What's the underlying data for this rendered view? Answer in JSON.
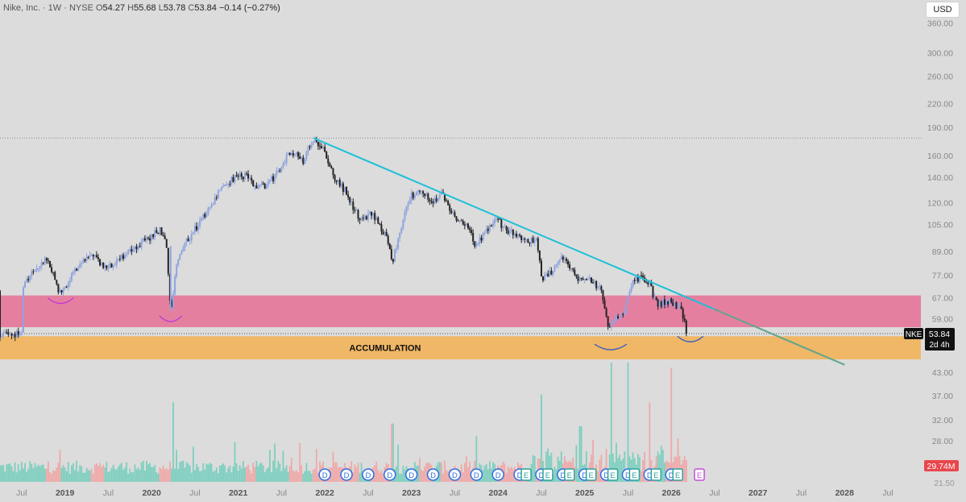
{
  "header": {
    "symbol_name": "Nike, Inc.",
    "interval": "1W",
    "exchange": "NYSE",
    "open_label": "O",
    "open": "54.27",
    "high_label": "H",
    "high": "55.68",
    "low_label": "L",
    "low": "53.78",
    "close_label": "C",
    "close": "53.84",
    "change": "−0.14 (−0.27%)"
  },
  "currency_button": "USD",
  "price_tag": {
    "ticker": "NKE",
    "price": "53.84",
    "countdown": "2d 4h"
  },
  "volume_tag": "29.74M",
  "zone_label": "ACCUMULATION",
  "colors": {
    "background": "#dcdcdc",
    "up_candle": "#8fa4de",
    "down_candle": "#222222",
    "trendline": "#1ec0d8",
    "resistance_zone": "#e57fa0",
    "accumulation_zone": "#efb766",
    "volume_up": "#7ccfbf",
    "volume_down": "#f0a8a8",
    "volume_tag": "#e8474d",
    "earnings_marker": "#2aa39a",
    "dividend_marker": "#2f6ee0"
  },
  "chart_data": [
    {
      "type": "candlestick",
      "scale": "log",
      "price_axis_ticks": [
        "360.00",
        "300.00",
        "260.00",
        "220.00",
        "190.00",
        "160.00",
        "140.00",
        "120.00",
        "105.00",
        "89.00",
        "77.00",
        "67.00",
        "59.00"
      ],
      "time_axis_labels": [
        "Jul",
        "2019",
        "Jul",
        "2020",
        "Jul",
        "2021",
        "Jul",
        "2022",
        "Jul",
        "2023",
        "Jul",
        "2024",
        "Jul",
        "2025",
        "Jul",
        "2026",
        "Jul",
        "2027",
        "Jul",
        "2028",
        "Jul"
      ],
      "ylim": [
        44,
        410
      ],
      "price_path": [
        {
          "t": 2018.5,
          "p": 70
        },
        {
          "t": 2018.65,
          "p": 80
        },
        {
          "t": 2018.8,
          "p": 85
        },
        {
          "t": 2018.95,
          "p": 68
        },
        {
          "t": 2019.1,
          "p": 78
        },
        {
          "t": 2019.3,
          "p": 88
        },
        {
          "t": 2019.45,
          "p": 80
        },
        {
          "t": 2019.6,
          "p": 84
        },
        {
          "t": 2019.75,
          "p": 90
        },
        {
          "t": 2019.95,
          "p": 96
        },
        {
          "t": 2020.1,
          "p": 102
        },
        {
          "t": 2020.17,
          "p": 92
        },
        {
          "t": 2020.22,
          "p": 62
        },
        {
          "t": 2020.3,
          "p": 86
        },
        {
          "t": 2020.45,
          "p": 98
        },
        {
          "t": 2020.6,
          "p": 110
        },
        {
          "t": 2020.75,
          "p": 125
        },
        {
          "t": 2020.95,
          "p": 140
        },
        {
          "t": 2021.1,
          "p": 142
        },
        {
          "t": 2021.2,
          "p": 130
        },
        {
          "t": 2021.35,
          "p": 135
        },
        {
          "t": 2021.5,
          "p": 148
        },
        {
          "t": 2021.6,
          "p": 165
        },
        {
          "t": 2021.75,
          "p": 155
        },
        {
          "t": 2021.87,
          "p": 178
        },
        {
          "t": 2022.0,
          "p": 165
        },
        {
          "t": 2022.1,
          "p": 140
        },
        {
          "t": 2022.25,
          "p": 128
        },
        {
          "t": 2022.4,
          "p": 108
        },
        {
          "t": 2022.55,
          "p": 112
        },
        {
          "t": 2022.7,
          "p": 98
        },
        {
          "t": 2022.78,
          "p": 84
        },
        {
          "t": 2022.9,
          "p": 108
        },
        {
          "t": 2023.0,
          "p": 125
        },
        {
          "t": 2023.1,
          "p": 128
        },
        {
          "t": 2023.25,
          "p": 122
        },
        {
          "t": 2023.35,
          "p": 126
        },
        {
          "t": 2023.5,
          "p": 110
        },
        {
          "t": 2023.62,
          "p": 105
        },
        {
          "t": 2023.75,
          "p": 92
        },
        {
          "t": 2023.9,
          "p": 104
        },
        {
          "t": 2024.0,
          "p": 110
        },
        {
          "t": 2024.05,
          "p": 102
        },
        {
          "t": 2024.2,
          "p": 100
        },
        {
          "t": 2024.35,
          "p": 94
        },
        {
          "t": 2024.45,
          "p": 96
        },
        {
          "t": 2024.5,
          "p": 75
        },
        {
          "t": 2024.6,
          "p": 78
        },
        {
          "t": 2024.75,
          "p": 86
        },
        {
          "t": 2024.9,
          "p": 76
        },
        {
          "t": 2025.05,
          "p": 76
        },
        {
          "t": 2025.2,
          "p": 70
        },
        {
          "t": 2025.27,
          "p": 55
        },
        {
          "t": 2025.35,
          "p": 58
        },
        {
          "t": 2025.45,
          "p": 62
        },
        {
          "t": 2025.55,
          "p": 74
        },
        {
          "t": 2025.65,
          "p": 76
        },
        {
          "t": 2025.75,
          "p": 72
        },
        {
          "t": 2025.85,
          "p": 64
        },
        {
          "t": 2025.95,
          "p": 66
        },
        {
          "t": 2026.05,
          "p": 64
        },
        {
          "t": 2026.12,
          "p": 62
        },
        {
          "t": 2026.18,
          "p": 53.84
        }
      ],
      "trendline": {
        "start": {
          "t": 2021.87,
          "p": 178
        },
        "end": {
          "t": 2028.0,
          "p": 44.5
        }
      },
      "zones": [
        {
          "label": "",
          "top": 68,
          "bottom": 56
        },
        {
          "label": "ACCUMULATION",
          "top": 53,
          "bottom": 46
        }
      ],
      "annotations": [
        "curve-2018.9",
        "curve-2020.22",
        "curve-2025.3",
        "curve-2026.2"
      ]
    },
    {
      "type": "bar",
      "name": "volume",
      "axis_ticks": [
        "43.00",
        "37.00",
        "32.00",
        "28.00"
      ],
      "last_value": "29.74M",
      "ylim": [
        0,
        45
      ],
      "spikes": [
        {
          "t": 2020.25,
          "v": 30
        },
        {
          "t": 2022.78,
          "v": 22
        },
        {
          "t": 2024.5,
          "v": 33
        },
        {
          "t": 2024.95,
          "v": 21
        },
        {
          "t": 2025.3,
          "v": 45
        },
        {
          "t": 2025.5,
          "v": 45
        },
        {
          "t": 2025.75,
          "v": 30
        },
        {
          "t": 2026.0,
          "v": 43
        }
      ]
    }
  ],
  "events": {
    "dividend_label": "D",
    "earnings_label": "E",
    "dividends": [
      2022.0,
      2022.25,
      2022.5,
      2022.75,
      2023.0,
      2023.25,
      2023.5,
      2023.75,
      2024.0,
      2024.25,
      2024.5,
      2024.75,
      2025.0,
      2025.25,
      2025.5,
      2025.75,
      2026.0
    ],
    "earnings": [
      2024.25,
      2024.5,
      2024.75,
      2025.0,
      2025.25,
      2025.5,
      2025.75,
      2026.0,
      2026.25
    ]
  }
}
